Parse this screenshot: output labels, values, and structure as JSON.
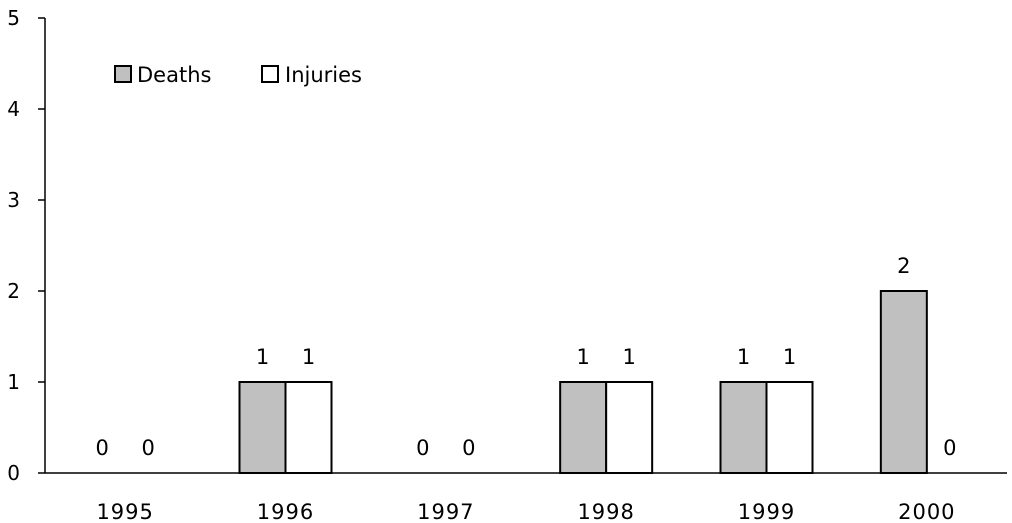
{
  "chart_data": {
    "type": "bar",
    "categories": [
      "1995",
      "1996",
      "1997",
      "1998",
      "1999",
      "2000"
    ],
    "series": [
      {
        "name": "Deaths",
        "values": [
          0,
          1,
          0,
          1,
          1,
          2
        ],
        "color": "#c0c0c0"
      },
      {
        "name": "Injuries",
        "values": [
          0,
          1,
          0,
          1,
          1,
          0
        ],
        "color": "#ffffff"
      }
    ],
    "ylim": [
      0,
      5
    ],
    "yticks": [
      0,
      1,
      2,
      3,
      4,
      5
    ],
    "grid": false,
    "legend_position": "top-left",
    "data_labels": true
  }
}
